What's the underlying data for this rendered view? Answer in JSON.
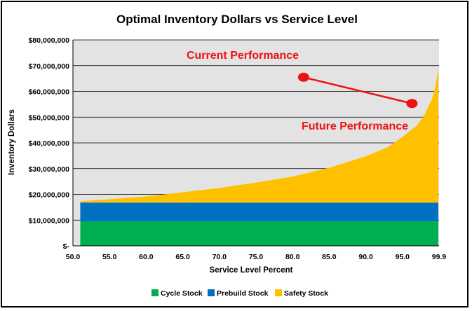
{
  "chart_data": {
    "type": "area",
    "title": "Optimal Inventory Dollars vs Service Level",
    "xlabel": "Service Level Percent",
    "ylabel": "Inventory Dollars",
    "x_ticks": [
      "50.0",
      "55.0",
      "60.0",
      "65.0",
      "70.0",
      "75.0",
      "80.0",
      "85.0",
      "90.0",
      "95.0",
      "99.9"
    ],
    "y_ticks": [
      "$-",
      "$10,000,000",
      "$20,000,000",
      "$30,000,000",
      "$40,000,000",
      "$50,000,000",
      "$60,000,000",
      "$70,000,000",
      "$80,000,000"
    ],
    "xlim": [
      50,
      100
    ],
    "ylim": [
      0,
      80000000
    ],
    "grid": true,
    "legend_position": "bottom",
    "stacked": true,
    "series": [
      {
        "name": "Cycle Stock",
        "color": "#00b050",
        "x": [
          51,
          99.9
        ],
        "values": [
          9500000,
          9500000
        ]
      },
      {
        "name": "Prebuild Stock",
        "color": "#0070c0",
        "x": [
          51,
          99.9
        ],
        "values": [
          7300000,
          7300000
        ]
      },
      {
        "name": "Safety Stock",
        "color": "#ffc000",
        "x": [
          51,
          55,
          60,
          65,
          70,
          75,
          80,
          85,
          90,
          93,
          95,
          97,
          98,
          99,
          99.5,
          99.9
        ],
        "values": [
          500000,
          1300000,
          2400000,
          4000000,
          5700000,
          7800000,
          10100000,
          13500000,
          18000000,
          21500000,
          25500000,
          30000000,
          34000000,
          40000000,
          45000000,
          52000000
        ]
      }
    ],
    "annotations": [
      {
        "text": "Current Performance",
        "color": "#ee1111"
      },
      {
        "text": "Future Performance",
        "color": "#ee1111"
      }
    ],
    "markers": [
      {
        "x": 81.5,
        "y": 65500000,
        "color": "#ee1111"
      },
      {
        "x": 96.3,
        "y": 55300000,
        "color": "#ee1111"
      }
    ]
  },
  "plot_background": "#e3e3e3"
}
